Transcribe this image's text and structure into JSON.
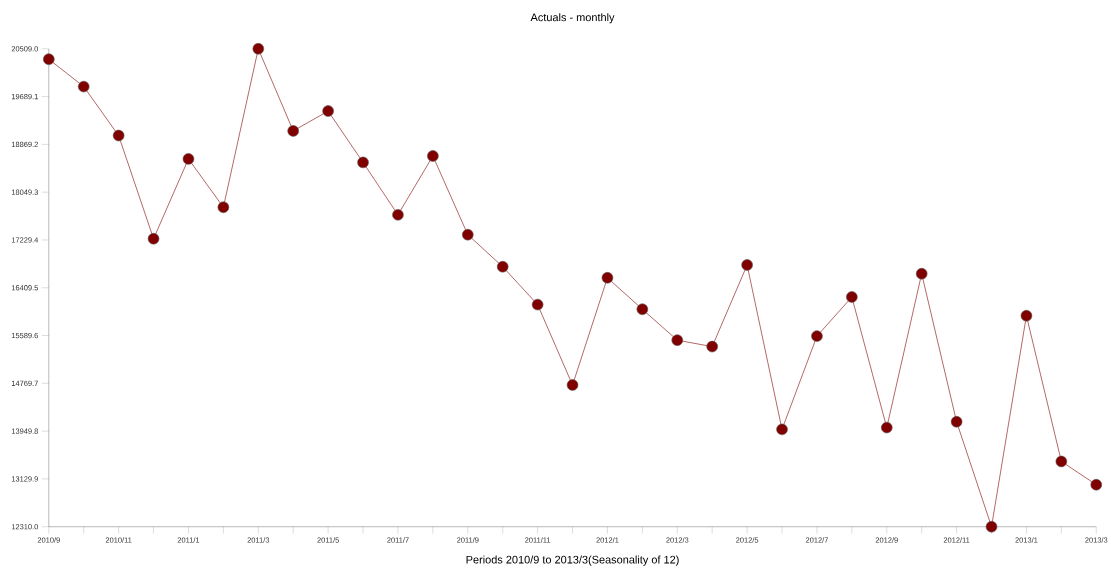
{
  "chart_data": {
    "type": "line",
    "title": "Actuals - monthly",
    "xlabel": "Periods 2010/9 to 2013/3(Seasonality of 12)",
    "categories": [
      "2010/9",
      null,
      "2010/11",
      null,
      "2011/1",
      null,
      "2011/3",
      null,
      "2011/5",
      null,
      "2011/7",
      null,
      "2011/9",
      null,
      "2011/11",
      null,
      "2012/1",
      null,
      "2012/3",
      null,
      "2012/5",
      null,
      "2012/7",
      null,
      "2012/9",
      null,
      "2012/11",
      null,
      "2013/1",
      null,
      "2013/3"
    ],
    "values": [
      20330,
      19860,
      19020,
      17250,
      18620,
      17790,
      20509,
      19100,
      19440,
      18560,
      17660,
      18670,
      17320,
      16770,
      16120,
      14740,
      16580,
      16040,
      15510,
      15400,
      16800,
      13980,
      15580,
      16250,
      14010,
      16650,
      14110,
      12310,
      15930,
      13430,
      13030
    ],
    "color": "#800000",
    "marker": "circle",
    "line_style": "solid",
    "grid": false,
    "ylim": [
      12310.0,
      20509.0
    ],
    "yticks": [
      {
        "value": 12310.0,
        "label": "12310.0"
      },
      {
        "value": 13129.9,
        "label": "13129.9"
      },
      {
        "value": 13949.8,
        "label": "13949.8"
      },
      {
        "value": 14769.7,
        "label": "14769.7"
      },
      {
        "value": 15589.6,
        "label": "15589.6"
      },
      {
        "value": 16409.5,
        "label": "16409.5"
      },
      {
        "value": 17229.4,
        "label": "17229.4"
      },
      {
        "value": 18049.3,
        "label": "18049.3"
      },
      {
        "value": 18869.2,
        "label": "18869.2"
      },
      {
        "value": 19689.1,
        "label": "19689.1"
      },
      {
        "value": 20509.0,
        "label": "20509.0"
      }
    ]
  }
}
